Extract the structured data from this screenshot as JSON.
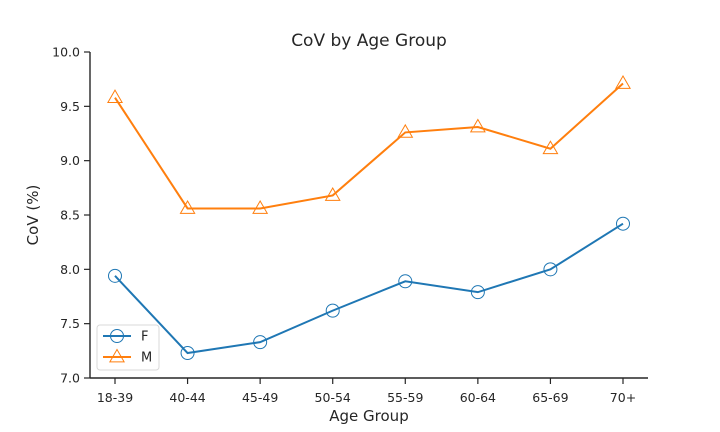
{
  "chart_data": {
    "type": "line",
    "title": "CoV by Age Group",
    "xlabel": "Age Group",
    "ylabel": "CoV (%)",
    "categories": [
      "18-39",
      "40-44",
      "45-49",
      "50-54",
      "55-59",
      "60-64",
      "65-69",
      "70+"
    ],
    "ylim": [
      7.0,
      10.0
    ],
    "yticks": [
      7.0,
      7.5,
      8.0,
      8.5,
      9.0,
      9.5,
      10.0
    ],
    "ytick_labels": [
      "7.0",
      "7.5",
      "8.0",
      "8.5",
      "9.0",
      "9.5",
      "10.0"
    ],
    "grid": false,
    "legend_position": "bottom-left",
    "series": [
      {
        "name": "F",
        "color": "#1f77b4",
        "marker": "circle",
        "values": [
          7.94,
          7.23,
          7.33,
          7.62,
          7.89,
          7.79,
          8.0,
          8.42
        ]
      },
      {
        "name": "M",
        "color": "#ff7f0e",
        "marker": "triangle",
        "values": [
          9.58,
          8.56,
          8.56,
          8.68,
          9.26,
          9.31,
          9.11,
          9.71
        ]
      }
    ]
  }
}
